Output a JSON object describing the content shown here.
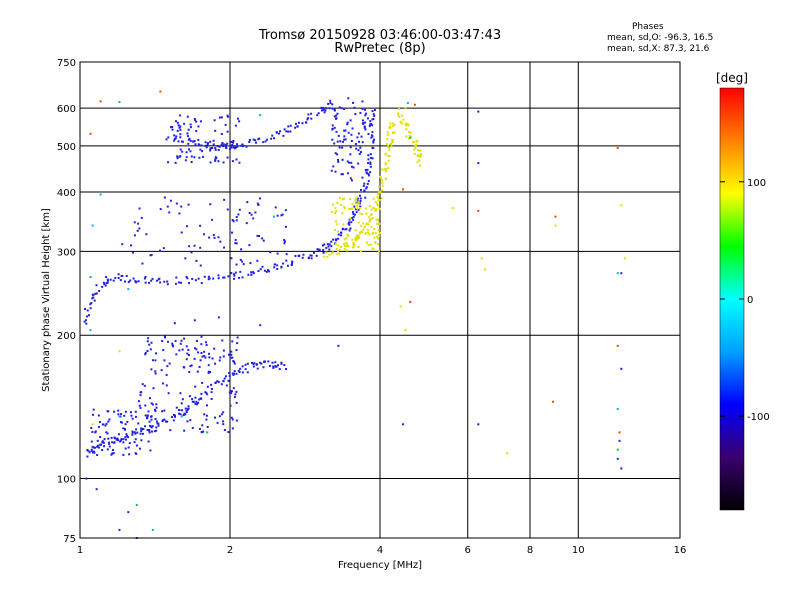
{
  "chart_data": {
    "type": "scatter",
    "title": "Tromsø 20150928 03:46:00-03:47:43",
    "subtitle": "RwPretec (8p)",
    "xlabel": "Frequency [MHz]",
    "ylabel": "Stationary phase Virtual Height [km]",
    "x_scale": "log",
    "y_scale": "log",
    "xlim": [
      1,
      16
    ],
    "ylim": [
      75,
      750
    ],
    "x_ticks": [
      1,
      2,
      4,
      6,
      8,
      10,
      16
    ],
    "y_ticks": [
      75,
      100,
      200,
      300,
      400,
      500,
      600,
      750
    ],
    "grid": true,
    "phases": {
      "header": "Phases",
      "o_mode": "mean, sd,O: -96.3, 16.5",
      "x_mode": "mean, sd,X: 87.3, 21.6"
    },
    "colorbar": {
      "label": "[deg]",
      "range": [
        -180,
        180
      ],
      "ticks": [
        -100,
        0,
        100
      ],
      "colors": [
        "#000000",
        "#3a0070",
        "#0000ff",
        "#00a0ff",
        "#00ffff",
        "#00ff00",
        "#ffff00",
        "#ff8000",
        "#ff0000"
      ]
    },
    "series": [
      {
        "mode": "O",
        "color": "#2020e0",
        "traces": [
          [
            [
              1.03,
              112
            ],
            [
              1.1,
              118
            ],
            [
              1.2,
              122
            ],
            [
              1.35,
              126
            ],
            [
              1.5,
              132
            ],
            [
              1.65,
              140
            ],
            [
              1.8,
              152
            ],
            [
              2.0,
              165
            ],
            [
              2.2,
              172
            ],
            [
              2.4,
              174
            ],
            [
              2.6,
              172
            ]
          ],
          [
            [
              1.02,
              212
            ],
            [
              1.07,
              245
            ],
            [
              1.15,
              265
            ],
            [
              1.3,
              262
            ],
            [
              1.5,
              260
            ],
            [
              1.8,
              262
            ],
            [
              2.1,
              268
            ],
            [
              2.4,
              277
            ],
            [
              2.7,
              288
            ],
            [
              3.0,
              298
            ],
            [
              3.2,
              312
            ],
            [
              3.4,
              332
            ],
            [
              3.55,
              360
            ],
            [
              3.7,
              398
            ],
            [
              3.8,
              455
            ],
            [
              3.85,
              530
            ],
            [
              3.9,
              600
            ]
          ],
          [
            [
              1.5,
              520
            ],
            [
              1.7,
              510
            ],
            [
              1.9,
              498
            ],
            [
              2.1,
              502
            ],
            [
              2.4,
              520
            ],
            [
              2.7,
              548
            ],
            [
              3.0,
              585
            ],
            [
              3.2,
              620
            ]
          ]
        ],
        "clusters": [
          {
            "x": [
              1.35,
              2.1
            ],
            "y": [
              165,
              200
            ]
          },
          {
            "x": [
              1.3,
              2.1
            ],
            "y": [
              125,
              160
            ]
          },
          {
            "x": [
              1.2,
              2.6
            ],
            "y": [
              280,
              390
            ]
          },
          {
            "x": [
              1.5,
              2.1
            ],
            "y": [
              460,
              580
            ]
          },
          {
            "x": [
              1.05,
              1.4
            ],
            "y": [
              112,
              140
            ]
          },
          {
            "x": [
              3.2,
              3.8
            ],
            "y": [
              420,
              630
            ]
          }
        ],
        "sparse": [
          [
            1.03,
            100
          ],
          [
            1.08,
            95
          ],
          [
            1.25,
            85
          ],
          [
            1.2,
            78
          ],
          [
            1.3,
            75
          ],
          [
            6.3,
            590
          ],
          [
            6.3,
            460
          ],
          [
            6.3,
            130
          ],
          [
            4.45,
            130
          ],
          [
            12.2,
            170
          ],
          [
            12.2,
            270
          ],
          [
            12.1,
            120
          ],
          [
            12.0,
            110
          ],
          [
            12.2,
            105
          ],
          [
            1.7,
            215
          ],
          [
            1.55,
            212
          ],
          [
            1.9,
            218
          ],
          [
            2.3,
            210
          ],
          [
            3.3,
            190
          ]
        ]
      },
      {
        "mode": "X",
        "color": "#e0e000",
        "traces": [
          [
            [
              3.1,
              296
            ],
            [
              3.4,
              305
            ],
            [
              3.6,
              318
            ],
            [
              3.8,
              340
            ],
            [
              3.95,
              375
            ],
            [
              4.05,
              420
            ],
            [
              4.15,
              475
            ],
            [
              4.2,
              520
            ],
            [
              4.25,
              560
            ]
          ],
          [
            [
              4.35,
              590
            ],
            [
              4.55,
              540
            ],
            [
              4.75,
              490
            ],
            [
              4.8,
              460
            ]
          ]
        ],
        "clusters": [
          {
            "x": [
              3.2,
              4.0
            ],
            "y": [
              300,
              390
            ]
          }
        ],
        "sparse": [
          [
            4.5,
            600
          ],
          [
            4.4,
            230
          ],
          [
            4.5,
            205
          ],
          [
            5.6,
            370
          ],
          [
            6.4,
            290
          ],
          [
            6.5,
            275
          ],
          [
            7.2,
            113
          ],
          [
            9.0,
            340
          ],
          [
            12.4,
            290
          ],
          [
            12.2,
            375
          ],
          [
            1.2,
            185
          ],
          [
            1.06,
            130
          ]
        ]
      },
      {
        "mode": "mixed",
        "color": "#ff4000",
        "sparse": [
          [
            1.45,
            650
          ],
          [
            1.05,
            530
          ],
          [
            6.3,
            365
          ],
          [
            4.45,
            405
          ],
          [
            4.6,
            235
          ],
          [
            8.9,
            145
          ],
          [
            12.0,
            495
          ],
          [
            12.0,
            190
          ],
          [
            12.1,
            125
          ],
          [
            9.0,
            355
          ],
          [
            4.7,
            610
          ],
          [
            1.1,
            620
          ]
        ]
      },
      {
        "mode": "mixed",
        "color": "#00c840",
        "sparse": [
          [
            1.2,
            618
          ],
          [
            1.4,
            78
          ],
          [
            1.3,
            88
          ],
          [
            12.0,
            115
          ],
          [
            1.05,
            265
          ],
          [
            1.8,
            125
          ],
          [
            2.3,
            580
          ],
          [
            4.6,
            520
          ]
        ]
      },
      {
        "mode": "mixed",
        "color": "#00b0ff",
        "sparse": [
          [
            1.06,
            340
          ],
          [
            1.1,
            395
          ],
          [
            1.25,
            250
          ],
          [
            1.2,
            135
          ],
          [
            1.05,
            205
          ],
          [
            12.0,
            140
          ],
          [
            12.0,
            270
          ],
          [
            4.55,
            615
          ],
          [
            1.6,
            135
          ],
          [
            2.45,
            355
          ]
        ]
      }
    ]
  }
}
